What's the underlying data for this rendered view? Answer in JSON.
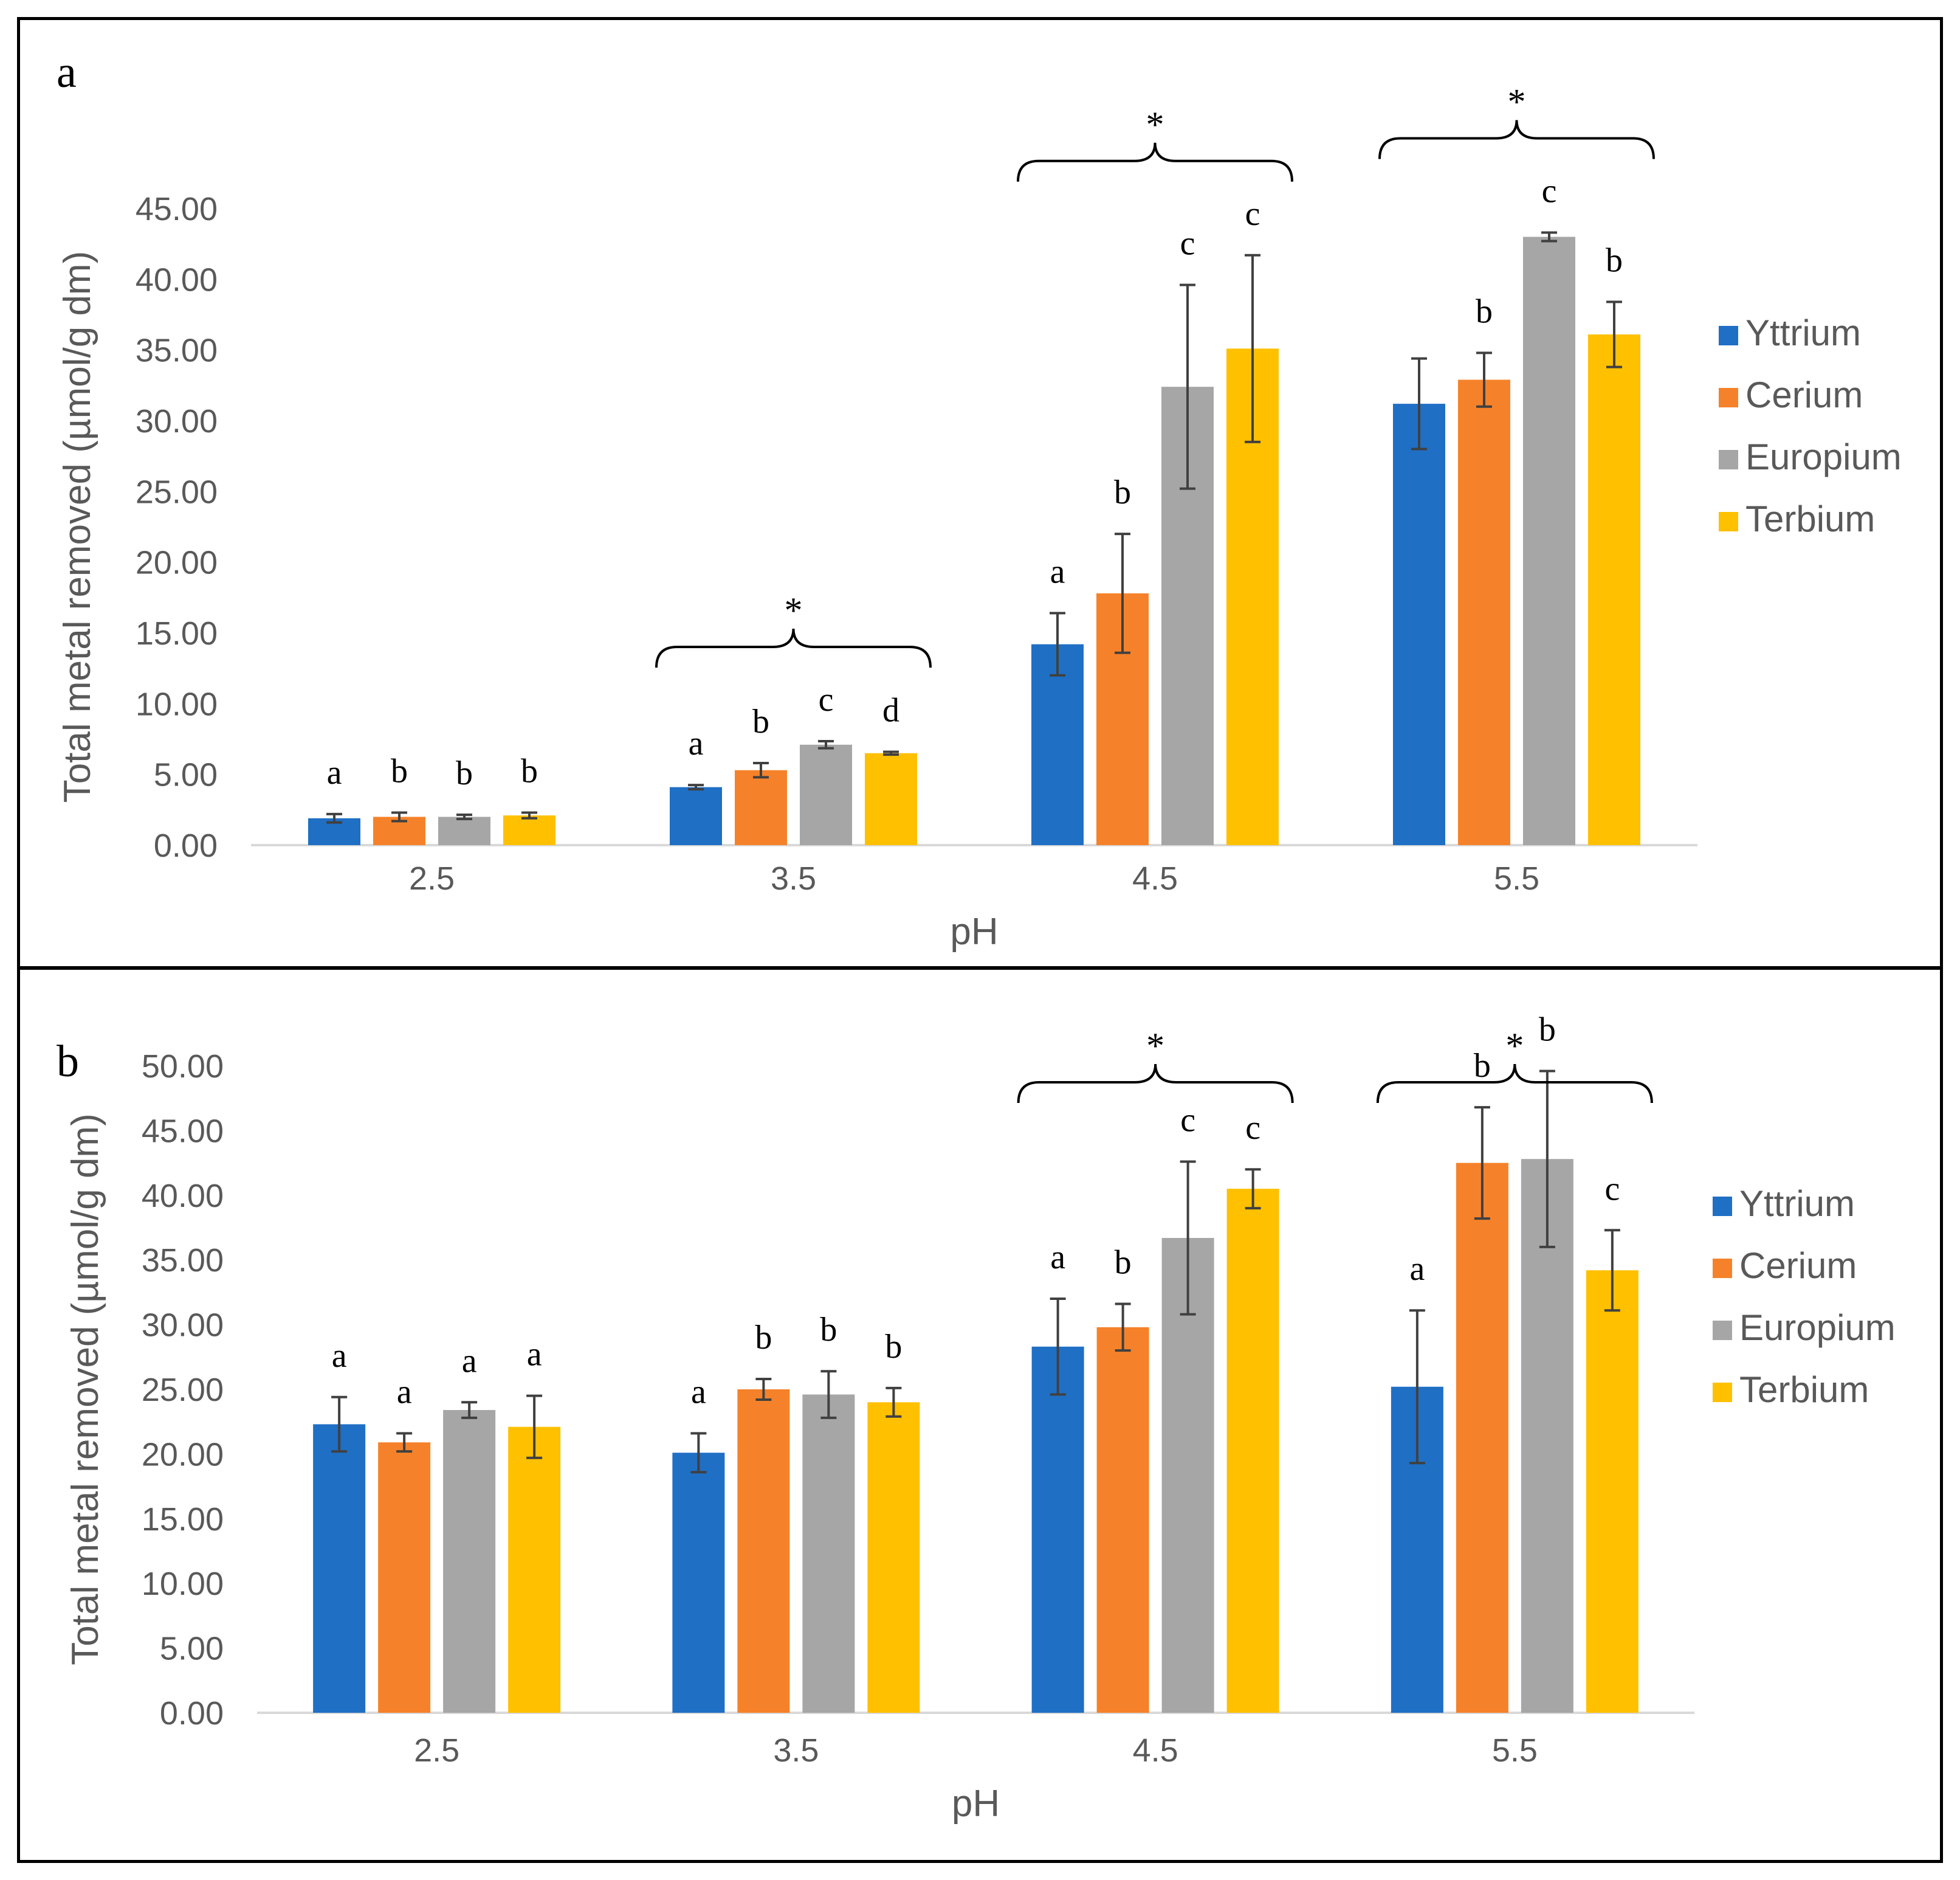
{
  "colors": {
    "Yttrium": "#1f6fc5",
    "Cerium": "#f5822a",
    "Europium": "#a6a6a6",
    "Terbium": "#ffc000",
    "axis": "#d9d9d9",
    "text": "#595959",
    "error": "#404040"
  },
  "chart_data": [
    {
      "type": "bar",
      "panel_label": "a",
      "xlabel": "pH",
      "ylabel": "Total metal removed (µmol/g dm)",
      "ylim": [
        0,
        45
      ],
      "ytick_step": 5,
      "ytick_labels": [
        "0.00",
        "5.00",
        "10.00",
        "15.00",
        "20.00",
        "25.00",
        "30.00",
        "35.00",
        "40.00",
        "45.00"
      ],
      "categories": [
        "2.5",
        "3.5",
        "4.5",
        "5.5"
      ],
      "legend": "right",
      "series": [
        {
          "name": "Yttrium",
          "values": [
            1.9,
            4.1,
            14.2,
            31.2
          ],
          "errors": [
            0.3,
            0.15,
            2.2,
            3.2
          ],
          "letters": [
            "a",
            "a",
            "a",
            ""
          ]
        },
        {
          "name": "Cerium",
          "values": [
            2.0,
            5.3,
            17.8,
            32.9
          ],
          "errors": [
            0.3,
            0.5,
            4.2,
            1.9
          ],
          "letters": [
            "b",
            "b",
            "b",
            "b"
          ]
        },
        {
          "name": "Europium",
          "values": [
            2.0,
            7.1,
            32.4,
            43.0
          ],
          "errors": [
            0.15,
            0.25,
            7.2,
            0.3
          ],
          "letters": [
            "b",
            "c",
            "c",
            "c"
          ]
        },
        {
          "name": "Terbium",
          "values": [
            2.1,
            6.5,
            35.1,
            36.1
          ],
          "errors": [
            0.2,
            0.1,
            6.6,
            2.3
          ],
          "letters": [
            "b",
            "d",
            "c",
            "b"
          ]
        }
      ],
      "significance": [
        {
          "category": "3.5",
          "mark": "*"
        },
        {
          "category": "4.5",
          "mark": "*"
        },
        {
          "category": "5.5",
          "mark": "*"
        }
      ]
    },
    {
      "type": "bar",
      "panel_label": "b",
      "xlabel": "pH",
      "ylabel": "Total metal removed (µmol/g dm)",
      "ylim": [
        0,
        50
      ],
      "ytick_step": 5,
      "ytick_labels": [
        "0.00",
        "5.00",
        "10.00",
        "15.00",
        "20.00",
        "25.00",
        "30.00",
        "35.00",
        "40.00",
        "45.00",
        "50.00"
      ],
      "categories": [
        "2.5",
        "3.5",
        "4.5",
        "5.5"
      ],
      "legend": "right",
      "series": [
        {
          "name": "Yttrium",
          "values": [
            22.3,
            20.1,
            28.3,
            25.2
          ],
          "errors": [
            2.1,
            1.5,
            3.7,
            5.9
          ],
          "letters": [
            "a",
            "a",
            "a",
            "a"
          ]
        },
        {
          "name": "Cerium",
          "values": [
            20.9,
            25.0,
            29.8,
            42.5
          ],
          "errors": [
            0.7,
            0.8,
            1.8,
            4.3
          ],
          "letters": [
            "a",
            "b",
            "b",
            "b"
          ]
        },
        {
          "name": "Europium",
          "values": [
            23.4,
            24.6,
            36.7,
            42.8
          ],
          "errors": [
            0.6,
            1.8,
            5.9,
            6.8
          ],
          "letters": [
            "a",
            "b",
            "c",
            "b"
          ]
        },
        {
          "name": "Terbium",
          "values": [
            22.1,
            24.0,
            40.5,
            34.2
          ],
          "errors": [
            2.4,
            1.1,
            1.5,
            3.1
          ],
          "letters": [
            "a",
            "b",
            "c",
            "c"
          ]
        }
      ],
      "significance": [
        {
          "category": "4.5",
          "mark": "*"
        },
        {
          "category": "5.5",
          "mark": "*"
        }
      ]
    }
  ]
}
